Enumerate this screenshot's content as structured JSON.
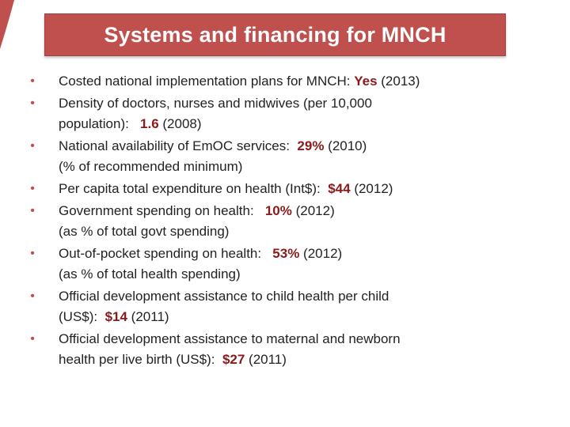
{
  "slide": {
    "title": "Systems and financing for MNCH"
  },
  "colors": {
    "title_bg": "#c0504d",
    "title_text": "#ffffff",
    "highlight": "#8b1a1a",
    "bullet": "#c0504d"
  },
  "bullets": [
    {
      "text": "Costed national implementation plans for MNCH: ",
      "value": "Yes",
      "tail": " (2013)",
      "line2": ""
    },
    {
      "text": "Density of doctors, nurses and midwives (per 10,000",
      "line2_pre": "population): ",
      "value": "1.6",
      "tail": " (2008)"
    },
    {
      "text": "National availability of EmOC services: ",
      "value": "29%",
      "tail": " (2010)",
      "line2": "(% of recommended minimum)"
    },
    {
      "text": "Per capita total expenditure on health (Int$): ",
      "value": "$44",
      "tail": " (2012)",
      "line2": ""
    },
    {
      "text": "Government spending on health: ",
      "value": "10%",
      "tail": " (2012)",
      "line2": "(as % of total govt spending)"
    },
    {
      "text": "Out-of-pocket spending on health: ",
      "value": "53%",
      "tail": " (2012)",
      "line2": "(as % of total health spending)"
    },
    {
      "text": "Official development assistance to child health per child",
      "line2_pre": "(US$): ",
      "value": "$14",
      "tail": " (2011)"
    },
    {
      "text": "Official development assistance to maternal and newborn",
      "line2_pre": "health per live birth (US$): ",
      "value": "$27",
      "tail": " (2011)"
    }
  ]
}
